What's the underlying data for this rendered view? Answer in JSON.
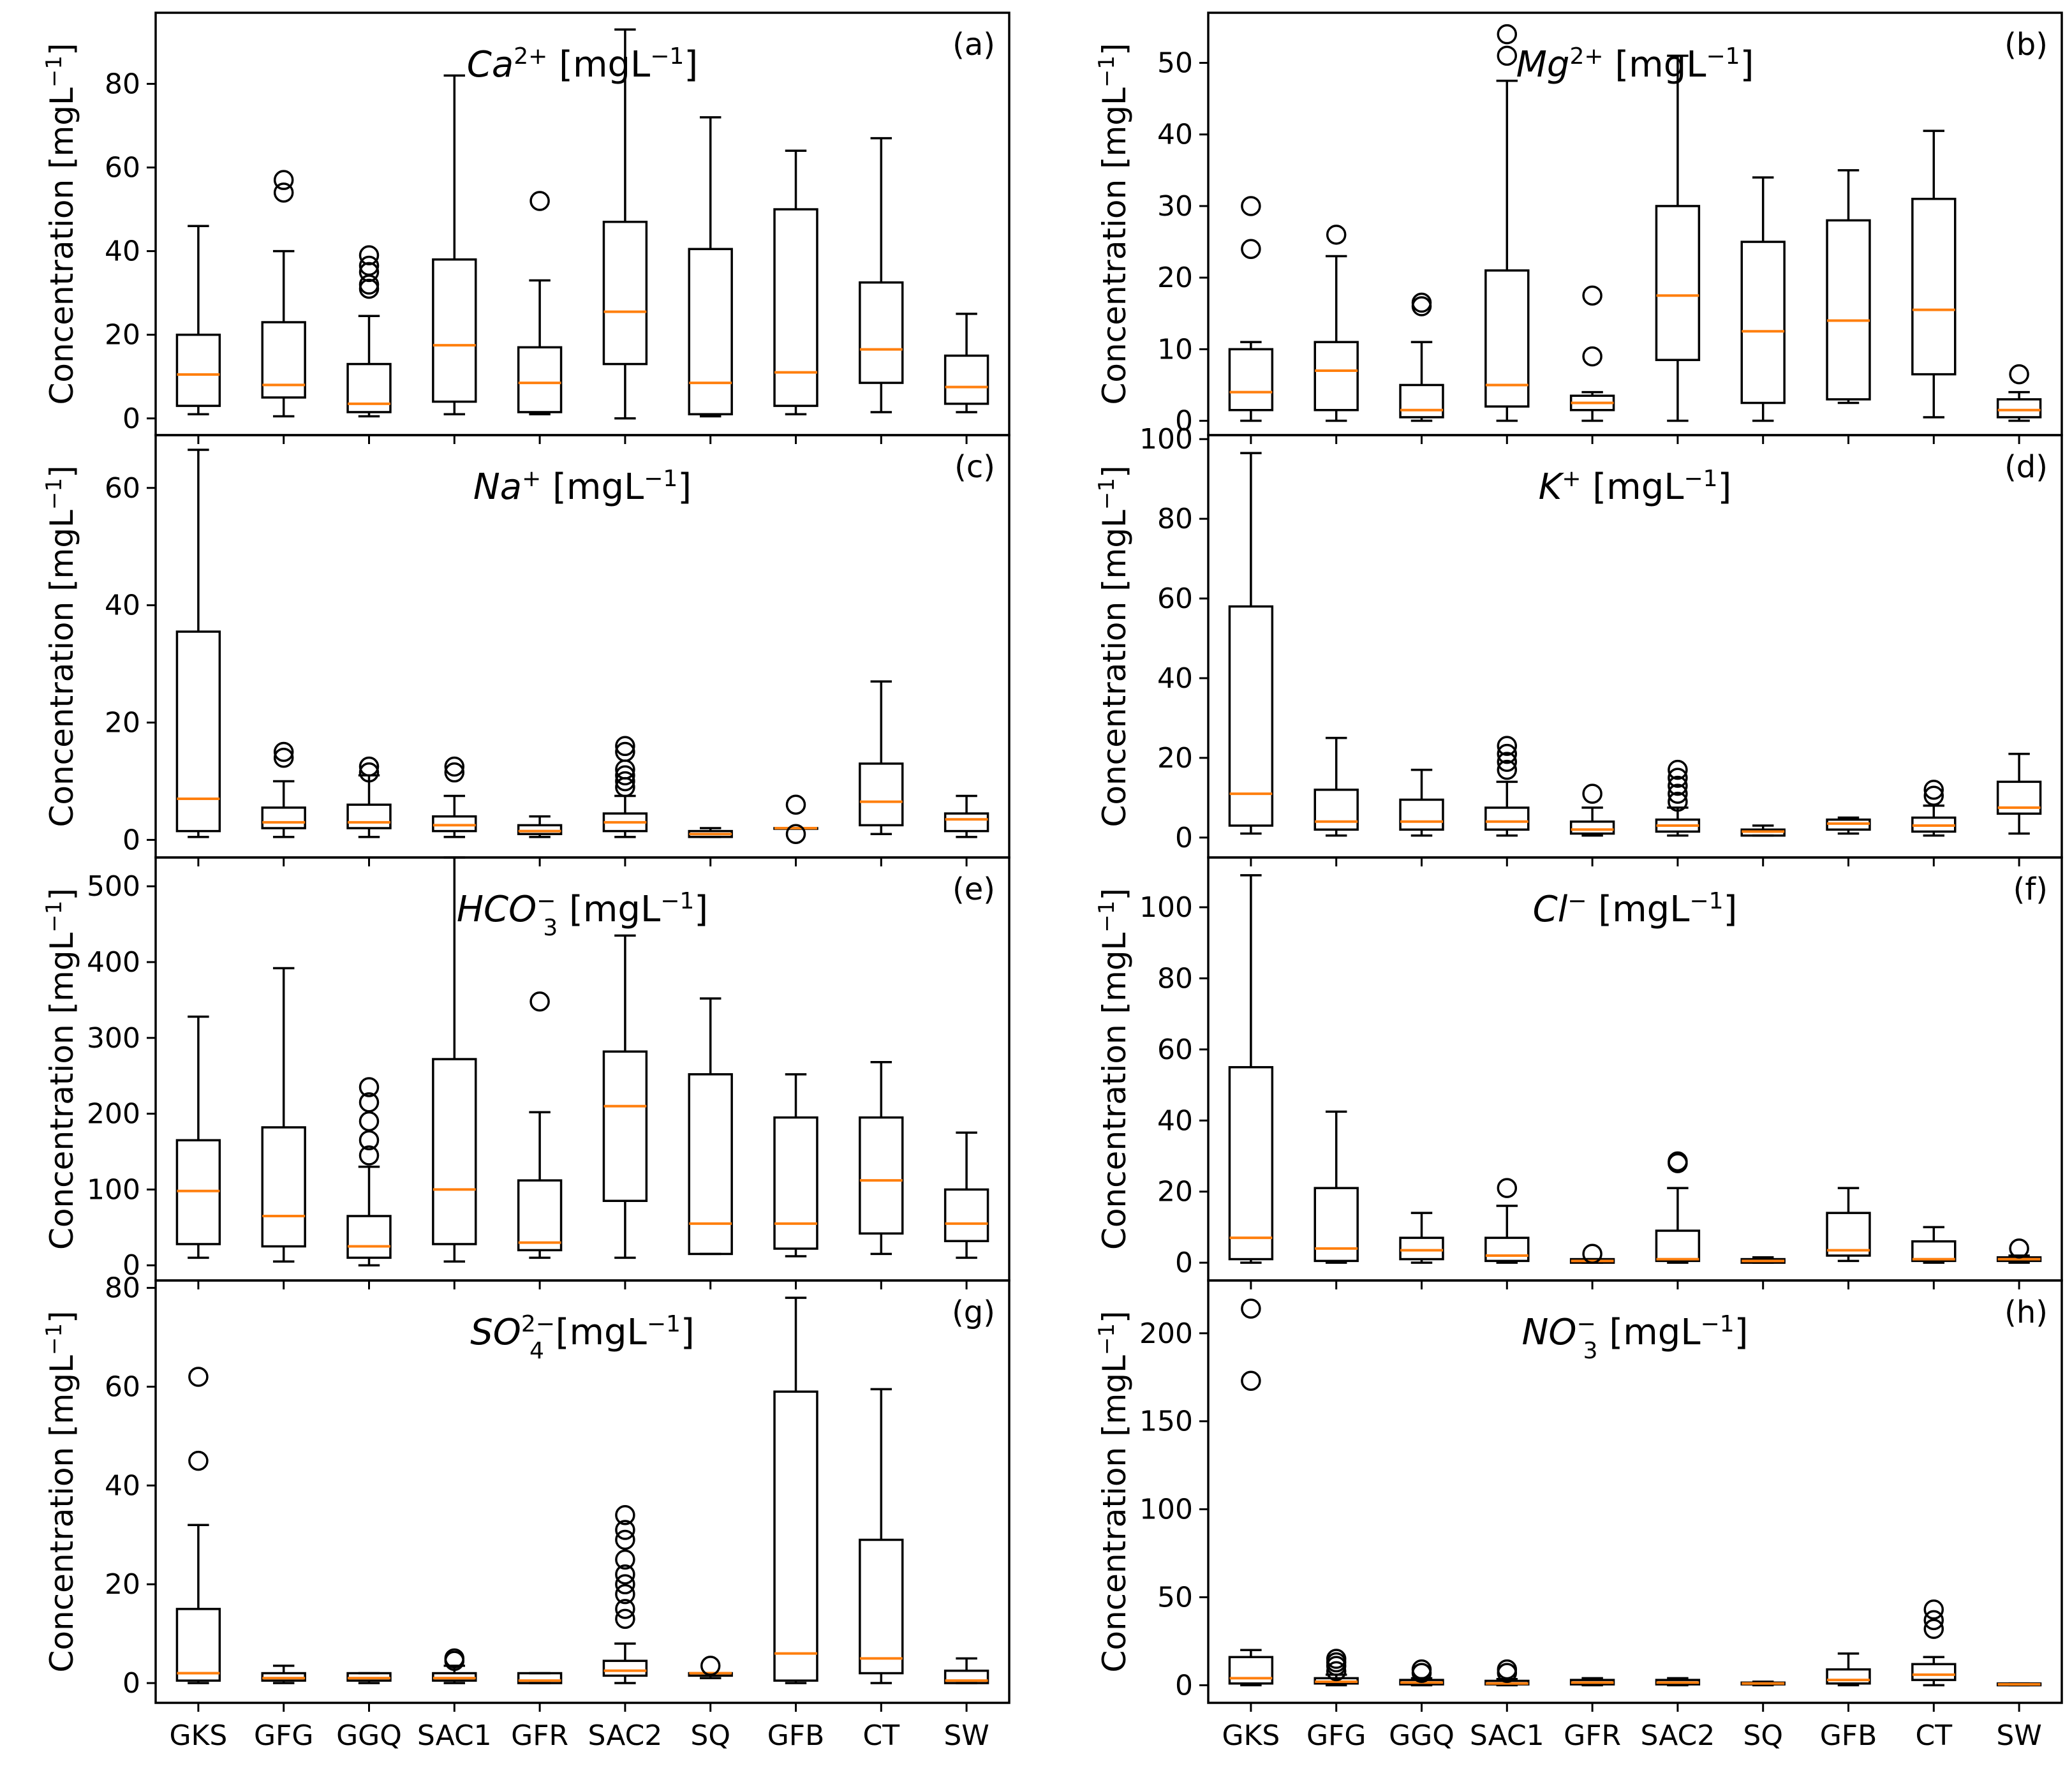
{
  "chart_data": [
    {
      "type": "box",
      "panel": "(a)",
      "title": {
        "ion": "Ca",
        "sup": "2+",
        "sub": "",
        "unit": "[mgL",
        "unit_sup": "−1",
        "unit_end": "]"
      },
      "ylabel": "Concentration [mgL−1]",
      "categories": [
        "GKS",
        "GFG",
        "GGQ",
        "SAC1",
        "GFR",
        "SAC2",
        "SQ",
        "GFB",
        "CT",
        "SW"
      ],
      "ylim": [
        -4,
        97
      ],
      "yticks": [
        0,
        20,
        40,
        60,
        80
      ],
      "boxes": [
        {
          "whislo": 1,
          "q1": 3,
          "med": 10.5,
          "q3": 20,
          "whishi": 46,
          "fliers": []
        },
        {
          "whislo": 0.5,
          "q1": 5,
          "med": 8,
          "q3": 23,
          "whishi": 40,
          "fliers": [
            54,
            57
          ]
        },
        {
          "whislo": 0.5,
          "q1": 1.5,
          "med": 3.5,
          "q3": 13,
          "whishi": 24.5,
          "fliers": [
            32,
            31,
            35,
            36.5,
            39
          ]
        },
        {
          "whislo": 1,
          "q1": 4,
          "med": 17.5,
          "q3": 38,
          "whishi": 82,
          "fliers": []
        },
        {
          "whislo": 1,
          "q1": 1.5,
          "med": 8.5,
          "q3": 17,
          "whishi": 33,
          "fliers": [
            52
          ]
        },
        {
          "whislo": 0,
          "q1": 13,
          "med": 25.5,
          "q3": 47,
          "whishi": 93,
          "fliers": []
        },
        {
          "whislo": 0.5,
          "q1": 1,
          "med": 8.5,
          "q3": 40.5,
          "whishi": 72,
          "fliers": []
        },
        {
          "whislo": 1,
          "q1": 3,
          "med": 11,
          "q3": 50,
          "whishi": 64,
          "fliers": []
        },
        {
          "whislo": 1.5,
          "q1": 8.5,
          "med": 16.5,
          "q3": 32.5,
          "whishi": 67,
          "fliers": []
        },
        {
          "whislo": 1.5,
          "q1": 3.5,
          "med": 7.5,
          "q3": 15,
          "whishi": 25,
          "fliers": []
        }
      ]
    },
    {
      "type": "box",
      "panel": "(b)",
      "title": {
        "ion": "Mg",
        "sup": "2+",
        "sub": "",
        "unit": "[mgL",
        "unit_sup": "−1",
        "unit_end": "]"
      },
      "ylabel": "Concentration [mgL−1]",
      "categories": [
        "GKS",
        "GFG",
        "GGQ",
        "SAC1",
        "GFR",
        "SAC2",
        "SQ",
        "GFB",
        "CT",
        "SW"
      ],
      "ylim": [
        -2,
        57
      ],
      "yticks": [
        0,
        10,
        20,
        30,
        40,
        50
      ],
      "boxes": [
        {
          "whislo": 0,
          "q1": 1.5,
          "med": 4,
          "q3": 10,
          "whishi": 11,
          "fliers": [
            24,
            30
          ]
        },
        {
          "whislo": 0,
          "q1": 1.5,
          "med": 7,
          "q3": 11,
          "whishi": 23,
          "fliers": [
            26
          ]
        },
        {
          "whislo": 0,
          "q1": 0.5,
          "med": 1.5,
          "q3": 5,
          "whishi": 11,
          "fliers": [
            16,
            16.5
          ]
        },
        {
          "whislo": 0,
          "q1": 2,
          "med": 5,
          "q3": 21,
          "whishi": 47.5,
          "fliers": [
            51,
            54
          ]
        },
        {
          "whislo": 0,
          "q1": 1.5,
          "med": 2.5,
          "q3": 3.5,
          "whishi": 4,
          "fliers": [
            9,
            17.5
          ]
        },
        {
          "whislo": 0,
          "q1": 8.5,
          "med": 17.5,
          "q3": 30,
          "whishi": 51,
          "fliers": []
        },
        {
          "whislo": 0,
          "q1": 2.5,
          "med": 12.5,
          "q3": 25,
          "whishi": 34,
          "fliers": []
        },
        {
          "whislo": 2.5,
          "q1": 3,
          "med": 14,
          "q3": 28,
          "whishi": 35,
          "fliers": []
        },
        {
          "whislo": 0.5,
          "q1": 6.5,
          "med": 15.5,
          "q3": 31,
          "whishi": 40.5,
          "fliers": []
        },
        {
          "whislo": 0,
          "q1": 0.5,
          "med": 1.5,
          "q3": 3,
          "whishi": 4,
          "fliers": [
            6.5
          ]
        }
      ]
    },
    {
      "type": "box",
      "panel": "(c)",
      "title": {
        "ion": "Na",
        "sup": "+",
        "sub": "",
        "unit": "[mgL",
        "unit_sup": "−1",
        "unit_end": "]"
      },
      "ylabel": "Concentration [mgL−1]",
      "categories": [
        "GKS",
        "GFG",
        "GGQ",
        "SAC1",
        "GFR",
        "SAC2",
        "SQ",
        "GFB",
        "CT",
        "SW"
      ],
      "ylim": [
        -3,
        69
      ],
      "yticks": [
        0,
        20,
        40,
        60
      ],
      "boxes": [
        {
          "whislo": 0.5,
          "q1": 1.5,
          "med": 7,
          "q3": 35.5,
          "whishi": 66.5,
          "fliers": []
        },
        {
          "whislo": 0.5,
          "q1": 2,
          "med": 3,
          "q3": 5.5,
          "whishi": 10,
          "fliers": [
            14,
            15
          ]
        },
        {
          "whislo": 0.5,
          "q1": 2,
          "med": 3,
          "q3": 6,
          "whishi": 11,
          "fliers": [
            11.5,
            12.5
          ]
        },
        {
          "whislo": 0.5,
          "q1": 1.5,
          "med": 2.5,
          "q3": 4,
          "whishi": 7.5,
          "fliers": [
            11.5,
            12.5
          ]
        },
        {
          "whislo": 0.5,
          "q1": 1,
          "med": 1.5,
          "q3": 2.5,
          "whishi": 4,
          "fliers": []
        },
        {
          "whislo": 0.5,
          "q1": 1.5,
          "med": 3,
          "q3": 4.5,
          "whishi": 7.5,
          "fliers": [
            9,
            10,
            11,
            12,
            15,
            16
          ]
        },
        {
          "whislo": 0.5,
          "q1": 0.5,
          "med": 1,
          "q3": 1.5,
          "whishi": 2,
          "fliers": []
        },
        {
          "whislo": 2,
          "q1": 2,
          "med": 2,
          "q3": 2,
          "whishi": 2,
          "fliers": [
            1,
            6
          ]
        },
        {
          "whislo": 1,
          "q1": 2.5,
          "med": 6.5,
          "q3": 13,
          "whishi": 27,
          "fliers": []
        },
        {
          "whislo": 0.5,
          "q1": 1.5,
          "med": 3.5,
          "q3": 4.5,
          "whishi": 7.5,
          "fliers": []
        }
      ]
    },
    {
      "type": "box",
      "panel": "(d)",
      "title": {
        "ion": "K",
        "sup": "+",
        "sub": "",
        "unit": "[mgL",
        "unit_sup": "−1",
        "unit_end": "]"
      },
      "ylabel": "Concentration [mgL−1]",
      "categories": [
        "GKS",
        "GFG",
        "GGQ",
        "SAC1",
        "GFR",
        "SAC2",
        "SQ",
        "GFB",
        "CT",
        "SW"
      ],
      "ylim": [
        -5,
        101
      ],
      "yticks": [
        0,
        20,
        40,
        60,
        80,
        100
      ],
      "boxes": [
        {
          "whislo": 1,
          "q1": 3,
          "med": 11,
          "q3": 58,
          "whishi": 96.5,
          "fliers": []
        },
        {
          "whislo": 0.5,
          "q1": 2,
          "med": 4,
          "q3": 12,
          "whishi": 25,
          "fliers": []
        },
        {
          "whislo": 0.5,
          "q1": 2,
          "med": 4,
          "q3": 9.5,
          "whishi": 17,
          "fliers": []
        },
        {
          "whislo": 0.5,
          "q1": 2,
          "med": 4,
          "q3": 7.5,
          "whishi": 14,
          "fliers": [
            17,
            19,
            21,
            23
          ]
        },
        {
          "whislo": 0.5,
          "q1": 1,
          "med": 2,
          "q3": 4,
          "whishi": 7.5,
          "fliers": [
            11
          ]
        },
        {
          "whislo": 0.5,
          "q1": 1.5,
          "med": 3,
          "q3": 4.5,
          "whishi": 7.5,
          "fliers": [
            9,
            11,
            13,
            15,
            17
          ]
        },
        {
          "whislo": 0.5,
          "q1": 0.5,
          "med": 1.5,
          "q3": 2,
          "whishi": 3,
          "fliers": []
        },
        {
          "whislo": 1,
          "q1": 2,
          "med": 3.5,
          "q3": 4.5,
          "whishi": 5,
          "fliers": []
        },
        {
          "whislo": 0.5,
          "q1": 1.5,
          "med": 3,
          "q3": 5,
          "whishi": 8,
          "fliers": [
            10.5,
            12
          ]
        },
        {
          "whislo": 1,
          "q1": 6,
          "med": 7.5,
          "q3": 14,
          "whishi": 21,
          "fliers": []
        }
      ]
    },
    {
      "type": "box",
      "panel": "(e)",
      "title": {
        "ion": "HCO",
        "sup": "−",
        "sub": "3",
        "unit": "[mgL",
        "unit_sup": "−1",
        "unit_end": "]"
      },
      "ylabel": "Concentration [mgL−1]",
      "categories": [
        "GKS",
        "GFG",
        "GGQ",
        "SAC1",
        "GFR",
        "SAC2",
        "SQ",
        "GFB",
        "CT",
        "SW"
      ],
      "ylim": [
        -20,
        538
      ],
      "yticks": [
        0,
        100,
        200,
        300,
        400,
        500
      ],
      "boxes": [
        {
          "whislo": 10,
          "q1": 28,
          "med": 98,
          "q3": 165,
          "whishi": 328,
          "fliers": []
        },
        {
          "whislo": 5,
          "q1": 25,
          "med": 65,
          "q3": 182,
          "whishi": 392,
          "fliers": []
        },
        {
          "whislo": 0,
          "q1": 10,
          "med": 25,
          "q3": 65,
          "whishi": 130,
          "fliers": [
            145,
            165,
            190,
            215,
            235
          ]
        },
        {
          "whislo": 5,
          "q1": 28,
          "med": 100,
          "q3": 272,
          "whishi": 538,
          "fliers": []
        },
        {
          "whislo": 10,
          "q1": 20,
          "med": 30,
          "q3": 112,
          "whishi": 202,
          "fliers": [
            348
          ]
        },
        {
          "whislo": 10,
          "q1": 85,
          "med": 210,
          "q3": 282,
          "whishi": 435,
          "fliers": []
        },
        {
          "whislo": 15,
          "q1": 15,
          "med": 55,
          "q3": 252,
          "whishi": 352,
          "fliers": []
        },
        {
          "whislo": 12,
          "q1": 22,
          "med": 55,
          "q3": 195,
          "whishi": 252,
          "fliers": []
        },
        {
          "whislo": 15,
          "q1": 42,
          "med": 112,
          "q3": 195,
          "whishi": 268,
          "fliers": []
        },
        {
          "whislo": 10,
          "q1": 32,
          "med": 55,
          "q3": 100,
          "whishi": 175,
          "fliers": []
        }
      ]
    },
    {
      "type": "box",
      "panel": "(f)",
      "title": {
        "ion": "Cl",
        "sup": "−",
        "sub": "",
        "unit": "[mgL",
        "unit_sup": "−1",
        "unit_end": "]"
      },
      "ylabel": "Concentration [mgL−1]",
      "categories": [
        "GKS",
        "GFG",
        "GGQ",
        "SAC1",
        "GFR",
        "SAC2",
        "SQ",
        "GFB",
        "CT",
        "SW"
      ],
      "ylim": [
        -5,
        114
      ],
      "yticks": [
        0,
        20,
        40,
        60,
        80,
        100
      ],
      "boxes": [
        {
          "whislo": 0,
          "q1": 1,
          "med": 7,
          "q3": 55,
          "whishi": 109,
          "fliers": []
        },
        {
          "whislo": 0,
          "q1": 0.5,
          "med": 4,
          "q3": 21,
          "whishi": 42.5,
          "fliers": []
        },
        {
          "whislo": 0,
          "q1": 1,
          "med": 3.5,
          "q3": 7,
          "whishi": 14,
          "fliers": []
        },
        {
          "whislo": 0,
          "q1": 0.5,
          "med": 2,
          "q3": 7,
          "whishi": 16,
          "fliers": [
            21
          ]
        },
        {
          "whislo": 0,
          "q1": 0,
          "med": 0.5,
          "q3": 1,
          "whishi": 1,
          "fliers": [
            2.5
          ]
        },
        {
          "whislo": 0,
          "q1": 0.5,
          "med": 1,
          "q3": 9,
          "whishi": 21,
          "fliers": [
            28,
            28.5
          ]
        },
        {
          "whislo": 0,
          "q1": 0,
          "med": 0.5,
          "q3": 1,
          "whishi": 1.5,
          "fliers": []
        },
        {
          "whislo": 0.5,
          "q1": 2,
          "med": 3.5,
          "q3": 14,
          "whishi": 21,
          "fliers": []
        },
        {
          "whislo": 0,
          "q1": 0.5,
          "med": 1,
          "q3": 6,
          "whishi": 10,
          "fliers": []
        },
        {
          "whislo": 0,
          "q1": 0.5,
          "med": 1,
          "q3": 1.5,
          "whishi": 2,
          "fliers": [
            4
          ]
        }
      ]
    },
    {
      "type": "box",
      "panel": "(g)",
      "title": {
        "ion": "SO",
        "sup": "2−",
        "sub": "4",
        "unit": "[mgL",
        "unit_sup": "−1",
        "unit_end": "]"
      },
      "ylabel": "Concentration [mgL−1]",
      "categories": [
        "GKS",
        "GFG",
        "GGQ",
        "SAC1",
        "GFR",
        "SAC2",
        "SQ",
        "GFB",
        "CT",
        "SW"
      ],
      "ylim": [
        -4,
        81.5
      ],
      "yticks": [
        0,
        20,
        40,
        60,
        80
      ],
      "boxes": [
        {
          "whislo": 0,
          "q1": 0.5,
          "med": 2,
          "q3": 15,
          "whishi": 32,
          "fliers": [
            45,
            62
          ]
        },
        {
          "whislo": 0,
          "q1": 0.5,
          "med": 1,
          "q3": 2,
          "whishi": 3.5,
          "fliers": []
        },
        {
          "whislo": 0,
          "q1": 0.5,
          "med": 1,
          "q3": 2,
          "whishi": 2,
          "fliers": []
        },
        {
          "whislo": 0,
          "q1": 0.5,
          "med": 1,
          "q3": 2,
          "whishi": 3.5,
          "fliers": [
            4.5,
            5
          ]
        },
        {
          "whislo": 0,
          "q1": 0,
          "med": 0.5,
          "q3": 2,
          "whishi": 2,
          "fliers": []
        },
        {
          "whislo": 0,
          "q1": 1.5,
          "med": 2.5,
          "q3": 4.5,
          "whishi": 8,
          "fliers": [
            13,
            15,
            18,
            20,
            22,
            25,
            29,
            31,
            34
          ]
        },
        {
          "whislo": 1,
          "q1": 1.5,
          "med": 2,
          "q3": 2,
          "whishi": 2,
          "fliers": [
            3.5
          ]
        },
        {
          "whislo": 0,
          "q1": 0.5,
          "med": 6,
          "q3": 59,
          "whishi": 78,
          "fliers": []
        },
        {
          "whislo": 0,
          "q1": 2,
          "med": 5,
          "q3": 29,
          "whishi": 59.5,
          "fliers": []
        },
        {
          "whislo": 0,
          "q1": 0,
          "med": 0.5,
          "q3": 2.5,
          "whishi": 5,
          "fliers": []
        }
      ]
    },
    {
      "type": "box",
      "panel": "(h)",
      "title": {
        "ion": "NO",
        "sup": "−",
        "sub": "3",
        "unit": "[mgL",
        "unit_sup": "−1",
        "unit_end": "]"
      },
      "ylabel": "Concentration [mgL−1]",
      "categories": [
        "GKS",
        "GFG",
        "GGQ",
        "SAC1",
        "GFR",
        "SAC2",
        "SQ",
        "GFB",
        "CT",
        "SW"
      ],
      "ylim": [
        -10,
        230
      ],
      "yticks": [
        0,
        50,
        100,
        150,
        200
      ],
      "boxes": [
        {
          "whislo": 0,
          "q1": 1,
          "med": 4,
          "q3": 16,
          "whishi": 20,
          "fliers": [
            173,
            214
          ]
        },
        {
          "whislo": 0,
          "q1": 1,
          "med": 2,
          "q3": 4,
          "whishi": 6,
          "fliers": [
            8,
            11,
            13,
            15
          ]
        },
        {
          "whislo": 0,
          "q1": 0.5,
          "med": 1.5,
          "q3": 3,
          "whishi": 4,
          "fliers": [
            7,
            9
          ]
        },
        {
          "whislo": 0,
          "q1": 0.5,
          "med": 1,
          "q3": 2.5,
          "whishi": 3.5,
          "fliers": [
            7,
            9
          ]
        },
        {
          "whislo": 0,
          "q1": 0.5,
          "med": 1.5,
          "q3": 3,
          "whishi": 4,
          "fliers": []
        },
        {
          "whislo": 0,
          "q1": 0.5,
          "med": 1.5,
          "q3": 3,
          "whishi": 4,
          "fliers": []
        },
        {
          "whislo": 0,
          "q1": 0.5,
          "med": 1,
          "q3": 1.5,
          "whishi": 2,
          "fliers": []
        },
        {
          "whislo": 0,
          "q1": 1,
          "med": 3,
          "q3": 9,
          "whishi": 18,
          "fliers": []
        },
        {
          "whislo": 0,
          "q1": 3,
          "med": 6,
          "q3": 12,
          "whishi": 16,
          "fliers": [
            32,
            37,
            43
          ]
        },
        {
          "whislo": 0,
          "q1": 0,
          "med": 0.5,
          "q3": 1,
          "whishi": 1,
          "fliers": []
        }
      ]
    }
  ]
}
